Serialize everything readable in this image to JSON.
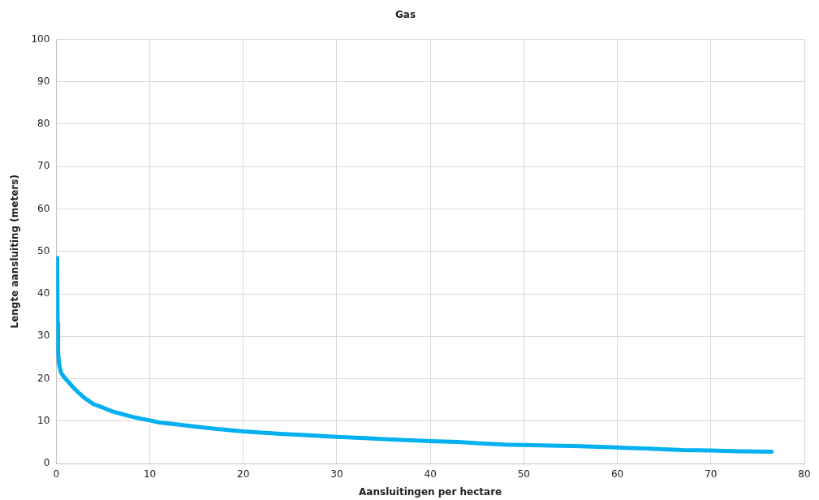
{
  "chart_data": {
    "type": "line",
    "title": "Gas",
    "xlabel": "Aansluitingen per hectare",
    "ylabel": "Lengte aansluiting (meters)",
    "xlim": [
      0,
      80
    ],
    "xticks": [
      0,
      10,
      20,
      30,
      40,
      50,
      60,
      70,
      80
    ],
    "ylim": [
      0,
      100
    ],
    "yticks": [
      0,
      10,
      20,
      30,
      40,
      50,
      60,
      70,
      80,
      90,
      100
    ],
    "grid": true,
    "marker": "none",
    "line_style": "solid",
    "series": [
      {
        "color": "#00b0f0",
        "x": [
          0.1,
          0.15,
          0.2,
          0.3,
          0.5,
          0.8,
          1.2,
          1.8,
          2.5,
          3,
          4,
          5,
          6,
          7,
          8,
          9,
          10,
          11,
          13,
          15,
          17,
          20,
          22,
          24,
          27,
          30,
          33,
          35,
          38,
          40,
          43,
          45,
          48,
          52,
          56,
          60,
          63,
          67,
          70,
          73,
          76.5
        ],
        "values": [
          48.5,
          33,
          26,
          23.5,
          21.5,
          20.5,
          19.5,
          18,
          16.5,
          15.5,
          14,
          13.2,
          12.3,
          11.7,
          11.1,
          10.6,
          10.2,
          9.7,
          9.2,
          8.7,
          8.2,
          7.6,
          7.3,
          7,
          6.7,
          6.3,
          6,
          5.8,
          5.5,
          5.3,
          5.1,
          4.8,
          4.5,
          4.3,
          4.1,
          3.8,
          3.6,
          3.2,
          3.1,
          2.9,
          2.8
        ]
      }
    ]
  }
}
